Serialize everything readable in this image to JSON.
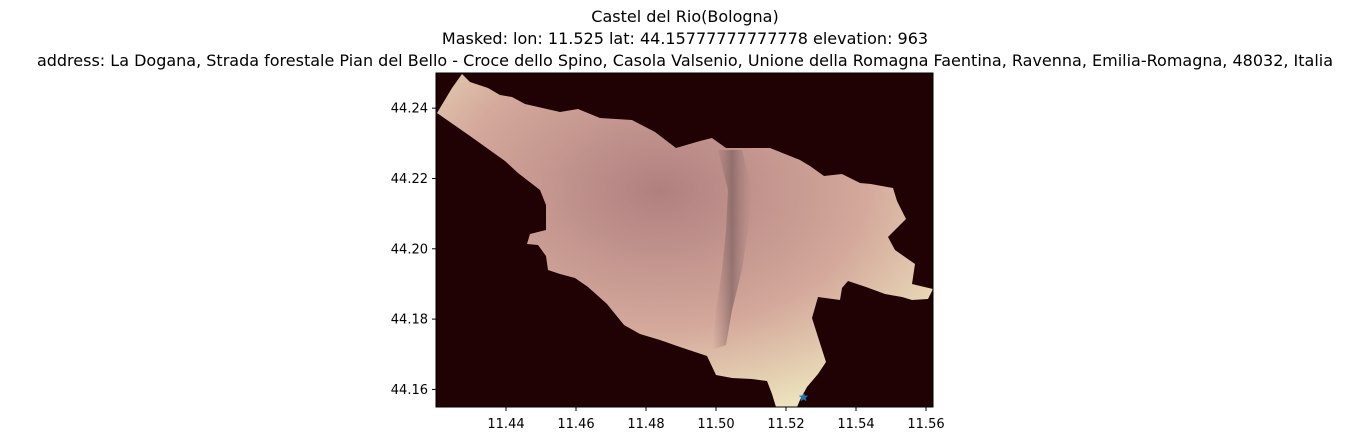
{
  "figure": {
    "title_line1": "Castel del Rio(Bologna)",
    "title_line2": "Masked: lon: 11.525 lat: 44.15777777777778 elevation: 963",
    "title_line3": "address: La Dogana, Strada forestale Pian del Bello - Croce dello Spino, Casola Valsenio, Unione della Romagna Faentina, Ravenna, Emilia-Romagna, 48032, Italia"
  },
  "chart_data": {
    "type": "heatmap",
    "xlim": [
      11.42,
      11.562
    ],
    "ylim": [
      44.155,
      44.25
    ],
    "x_ticks": [
      "11.44",
      "11.46",
      "11.48",
      "11.50",
      "11.52",
      "11.54",
      "11.56"
    ],
    "y_ticks": [
      "44.24",
      "44.22",
      "44.20",
      "44.18",
      "44.16"
    ],
    "background_color": "#200204",
    "colormap": "pink",
    "marker": {
      "lon": 11.525,
      "lat": 44.15777777777778,
      "color": "#1f77b4",
      "shape": "star"
    }
  },
  "colors": {
    "masked_background": "#200204",
    "terrain_low": "#7a5a55",
    "terrain_mid": "#c08a8a",
    "terrain_high": "#f3f0c0"
  }
}
